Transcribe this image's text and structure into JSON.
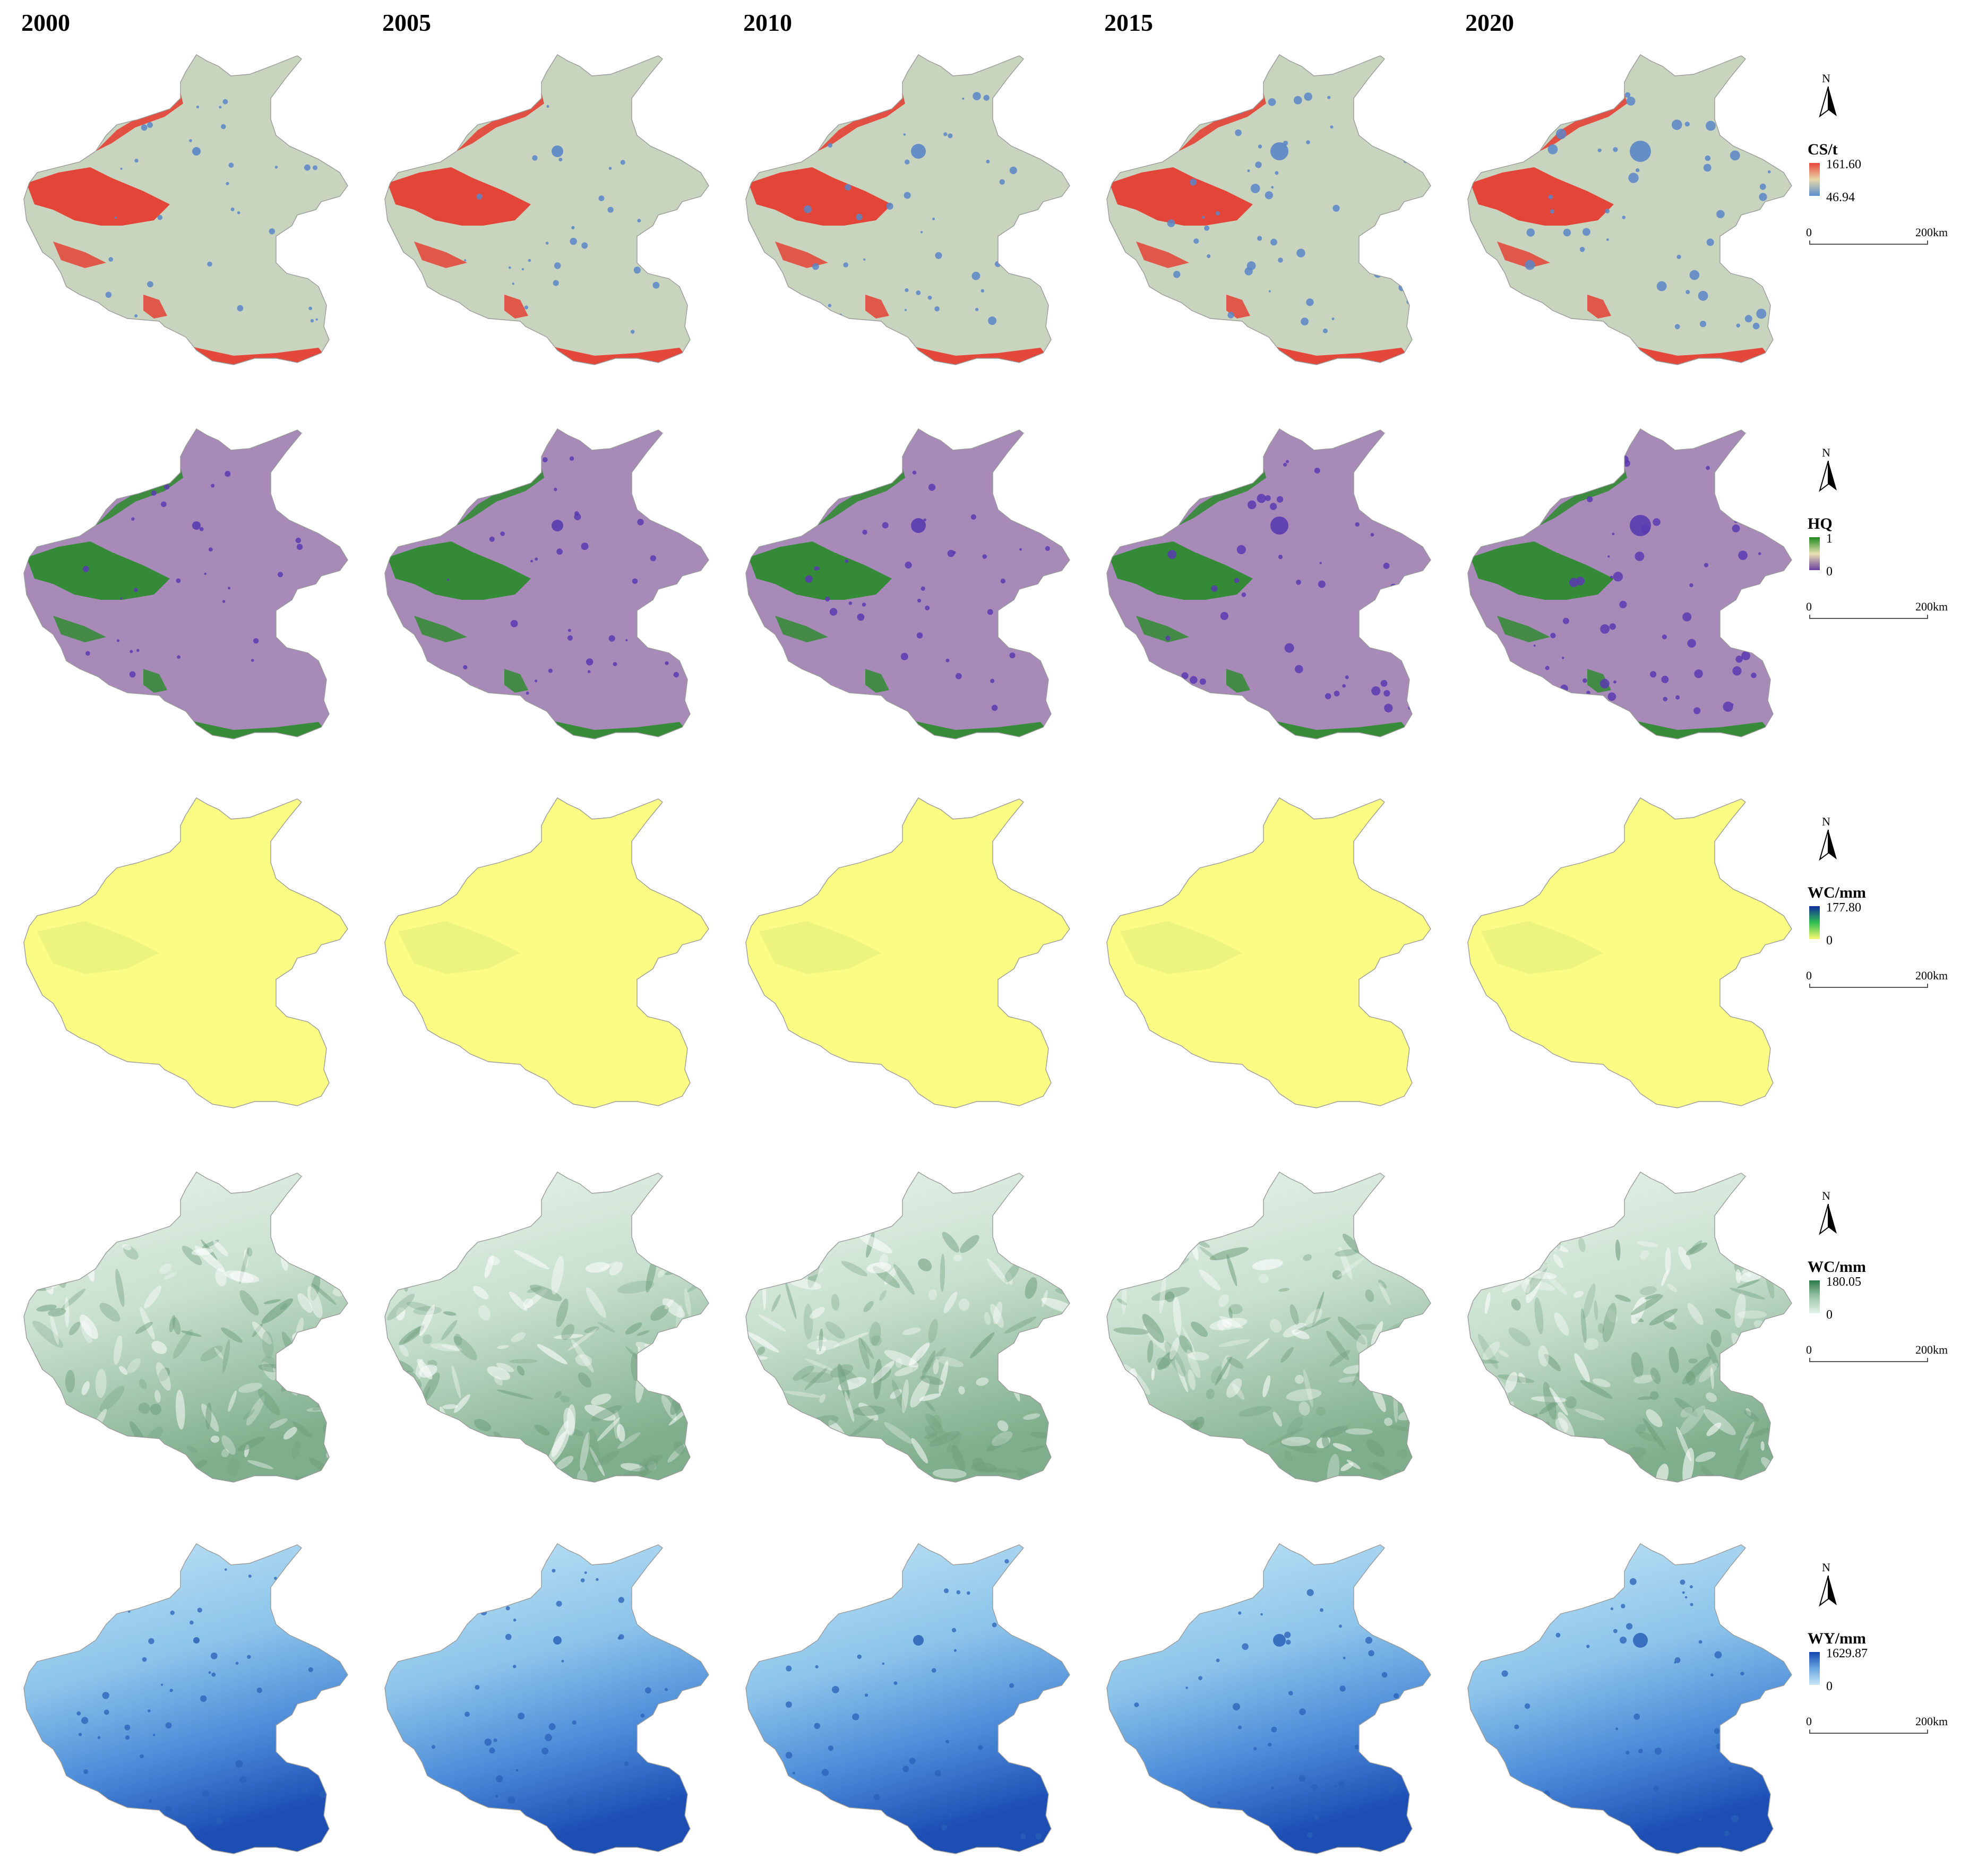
{
  "years": [
    "2000",
    "2005",
    "2010",
    "2015",
    "2020"
  ],
  "rows": [
    {
      "id": "cs",
      "legend_title": "CS/t",
      "max_label": "161.60",
      "min_label": "46.94",
      "ramp_colors": [
        "#e8453a",
        "#e9d6a8",
        "#5b8fd0"
      ],
      "base_color": "#c9d4bf",
      "accent_color": "#e5382c",
      "spot_color": "#5a86c8"
    },
    {
      "id": "hq",
      "legend_title": "HQ",
      "max_label": "1",
      "min_label": "0",
      "ramp_colors": [
        "#1f8a1f",
        "#e8e0b0",
        "#6a3fa0"
      ],
      "base_color": "#a78ab8",
      "accent_color": "#2a8a2a",
      "spot_color": "#5a3ab0"
    },
    {
      "id": "wc1",
      "legend_title": "WC/mm",
      "max_label": "177.80",
      "min_label": "0",
      "ramp_colors": [
        "#102c9c",
        "#2fc050",
        "#f8f870"
      ],
      "base_color": "#fbfc84",
      "accent_color": "#e2ef7a",
      "spot_color": "#e9f27e"
    },
    {
      "id": "wc2",
      "legend_title": "WC/mm",
      "max_label": "180.05",
      "min_label": "0",
      "ramp_colors": [
        "#2e7a4c",
        "#9cc6a8",
        "#e4f2ea"
      ],
      "base_color": "#dcebdf",
      "accent_color": "#6f9e7c",
      "spot_color": "#b8d4bf"
    },
    {
      "id": "wy",
      "legend_title": "WY/mm",
      "max_label": "1629.87",
      "min_label": "0",
      "ramp_colors": [
        "#1546b0",
        "#6aa6e0",
        "#c8e6f6"
      ],
      "base_color": "#a8d6f0",
      "accent_color": "#3478cc",
      "spot_color": "#2a60b8"
    }
  ],
  "north_label": "N",
  "scale": {
    "zero": "0",
    "max": "200",
    "unit": "km"
  }
}
